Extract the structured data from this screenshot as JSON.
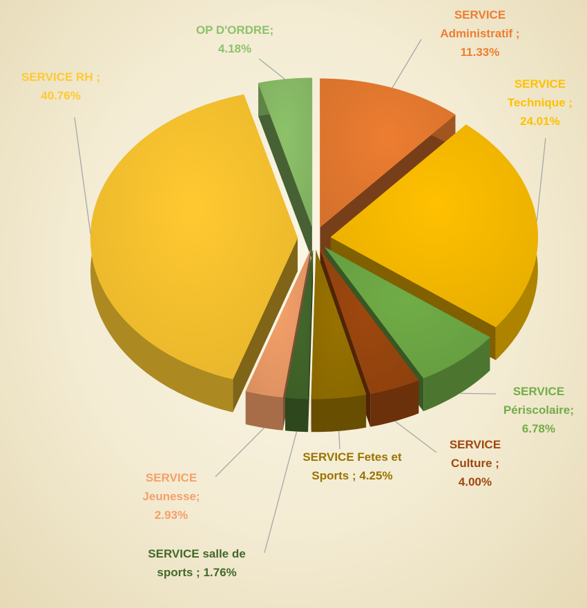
{
  "chart_data": {
    "type": "pie",
    "categories": [
      "SERVICE Administratif ;",
      "SERVICE Technique ;",
      "SERVICE Périscolaire;",
      "SERVICE Culture ;",
      "SERVICE Fetes et Sports ;",
      "SERVICE salle de sports ;",
      "SERVICE Jeunesse;",
      "SERVICE RH ;",
      "OP D'ORDRE;"
    ],
    "values": [
      11.33,
      24.01,
      6.78,
      4.0,
      4.25,
      1.76,
      2.93,
      40.76,
      4.18
    ],
    "value_labels": [
      "11.33%",
      "24.01%",
      "6.78%",
      "4.00%",
      "4.25%",
      "1.76%",
      "2.93%",
      "40.76%",
      "4.18%"
    ],
    "colors": [
      "#ed7d31",
      "#ffc000",
      "#70ad47",
      "#9e480e",
      "#997300",
      "#43682b",
      "#f4a06a",
      "#ffc930",
      "#8dc26a"
    ]
  }
}
